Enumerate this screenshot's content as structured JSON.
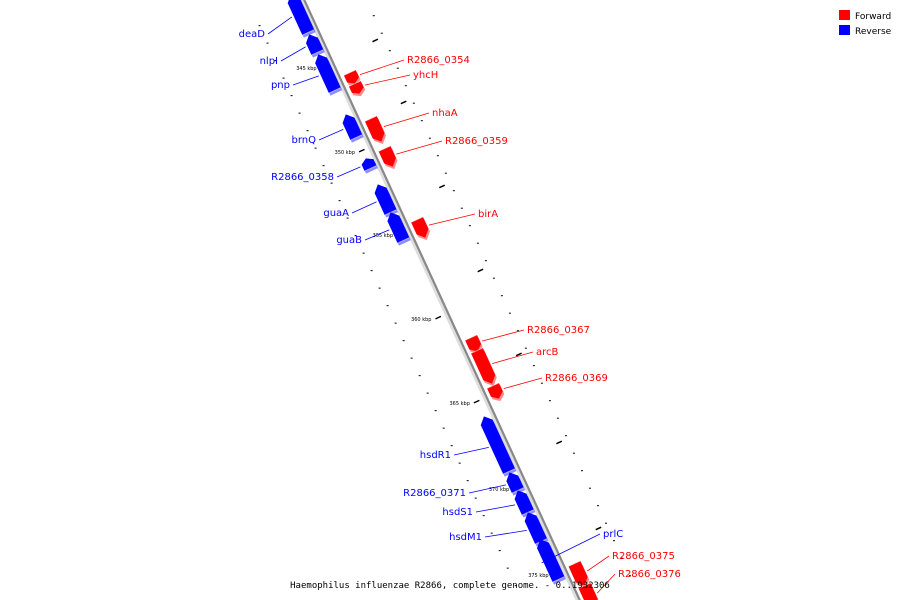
{
  "footer": "Haemophilus influenzae R2866, complete genome. - 0..1932306",
  "colors": {
    "forward": "#ff0000",
    "reverse": "#0000ff",
    "backbone": "#888888"
  },
  "legend": [
    {
      "label": "Forward",
      "strand": "forward"
    },
    {
      "label": "Reverse",
      "strand": "reverse"
    }
  ],
  "ticks": [
    "345 kbp",
    "350 kbp",
    "355 kbp",
    "360 kbp",
    "365 kbp",
    "370 kbp",
    "375 kbp"
  ],
  "genes": [
    {
      "name": "deaD",
      "strand": "reverse"
    },
    {
      "name": "nlpI",
      "strand": "reverse"
    },
    {
      "name": "pnp",
      "strand": "reverse"
    },
    {
      "name": "R2866_0354",
      "strand": "forward"
    },
    {
      "name": "yhcH",
      "strand": "forward"
    },
    {
      "name": "nhaA",
      "strand": "forward"
    },
    {
      "name": "brnQ",
      "strand": "reverse"
    },
    {
      "name": "R2866_0359",
      "strand": "forward"
    },
    {
      "name": "R2866_0358",
      "strand": "reverse"
    },
    {
      "name": "guaA",
      "strand": "reverse"
    },
    {
      "name": "birA",
      "strand": "forward"
    },
    {
      "name": "guaB",
      "strand": "reverse"
    },
    {
      "name": "R2866_0367",
      "strand": "forward"
    },
    {
      "name": "arcB",
      "strand": "forward"
    },
    {
      "name": "R2866_0369",
      "strand": "forward"
    },
    {
      "name": "hsdR1",
      "strand": "reverse"
    },
    {
      "name": "R2866_0371",
      "strand": "reverse"
    },
    {
      "name": "hsdS1",
      "strand": "reverse"
    },
    {
      "name": "hsdM1",
      "strand": "reverse"
    },
    {
      "name": "prlC",
      "strand": "reverse"
    },
    {
      "name": "R2866_0375",
      "strand": "forward"
    },
    {
      "name": "R2866_0376",
      "strand": "forward"
    }
  ]
}
